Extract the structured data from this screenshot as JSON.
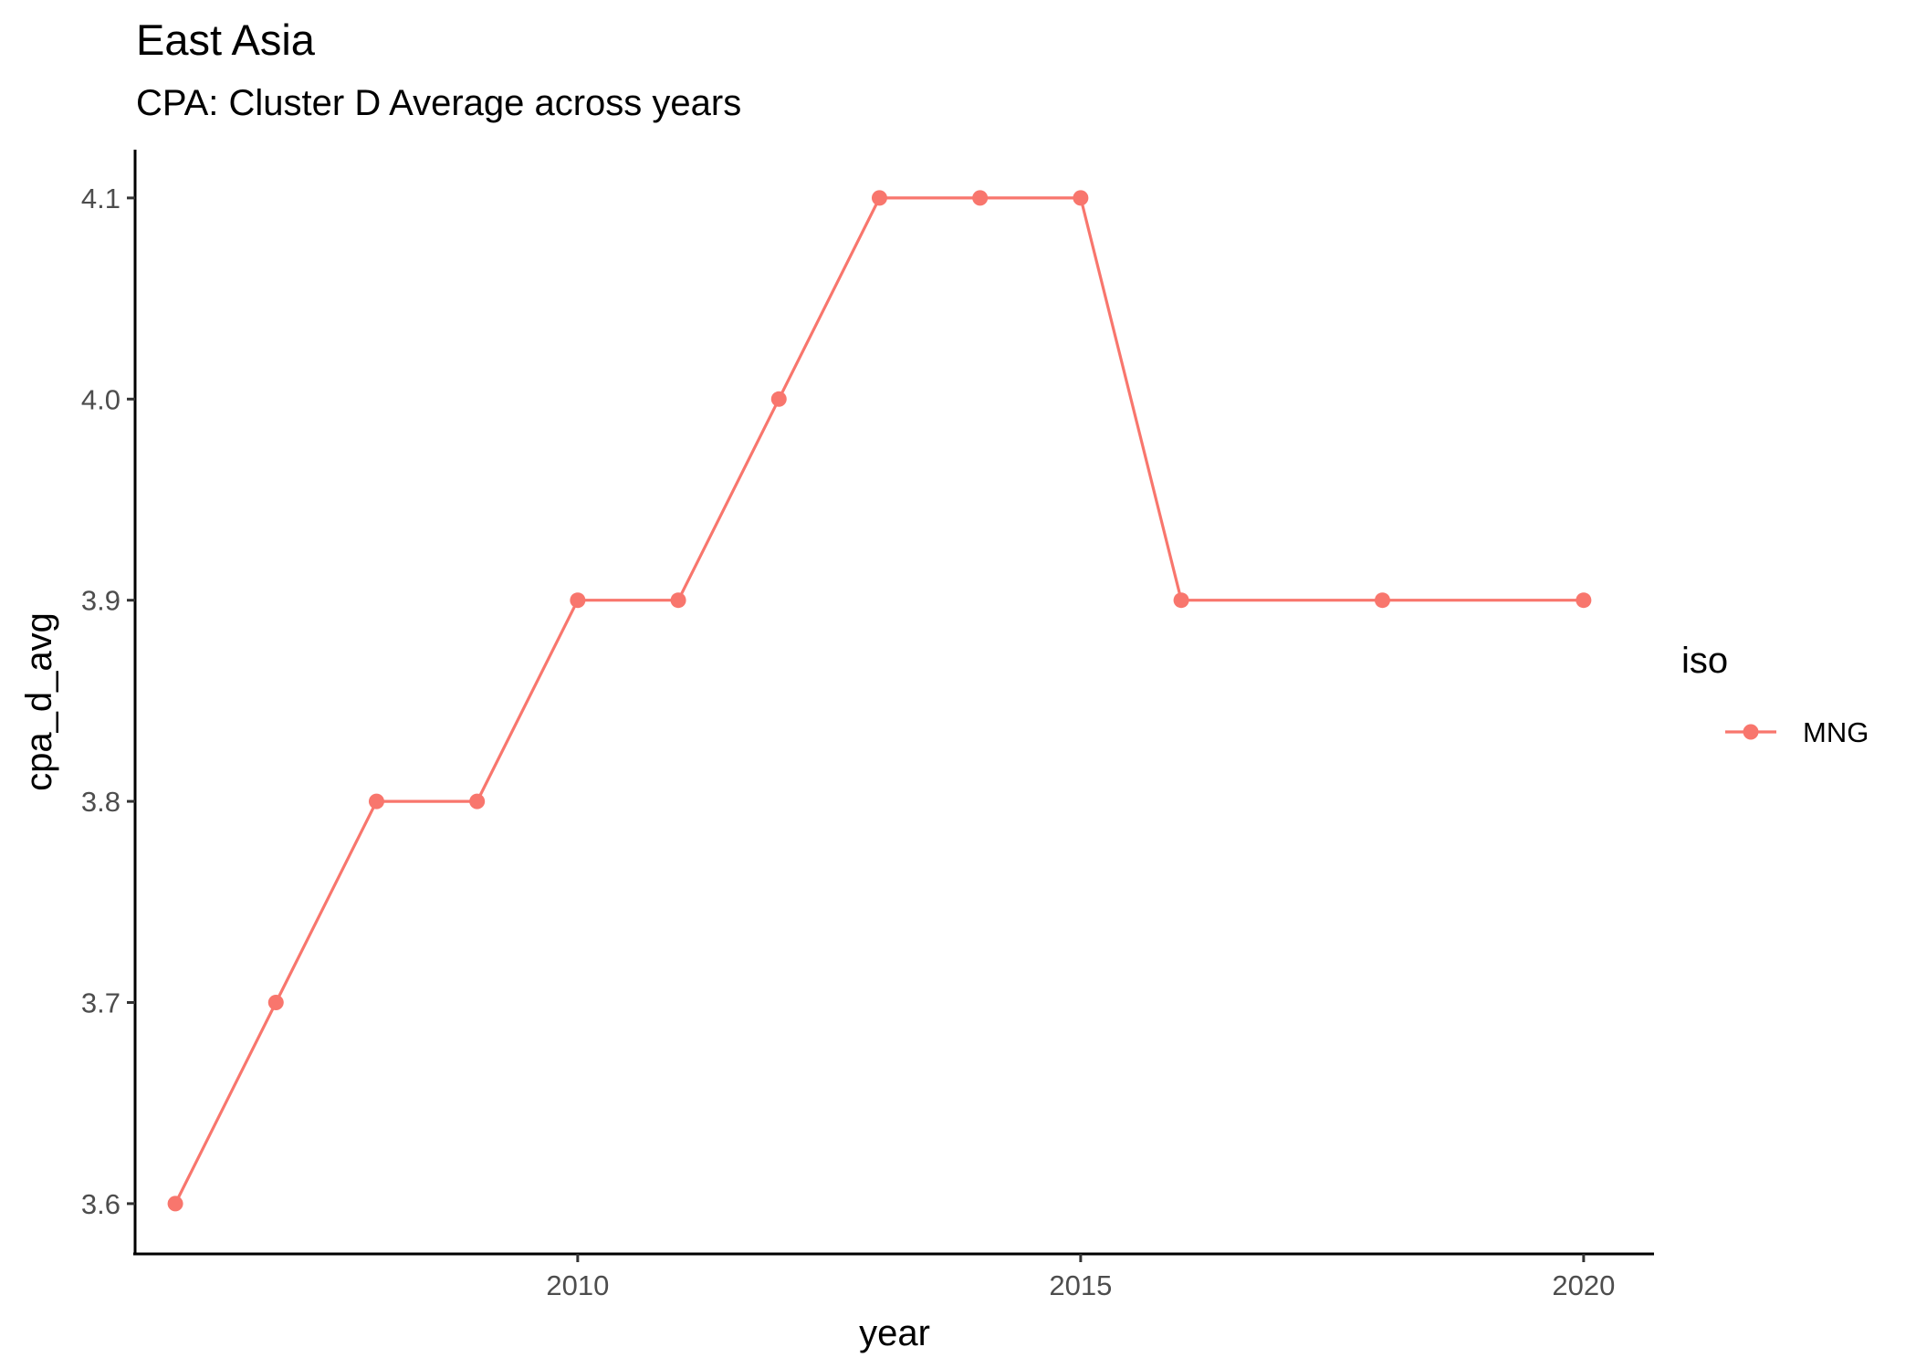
{
  "chart_data": {
    "type": "line",
    "title": "East Asia",
    "subtitle": "CPA: Cluster D Average across years",
    "xlabel": "year",
    "ylabel": "cpa_d_avg",
    "xlim": [
      2005.6,
      2020.7
    ],
    "ylim": [
      3.575,
      4.124
    ],
    "x_ticks": [
      2010,
      2015,
      2020
    ],
    "y_ticks": [
      3.6,
      3.7,
      3.8,
      3.9,
      4.0,
      4.1
    ],
    "y_tick_labels": [
      "3.6",
      "3.7",
      "3.8",
      "3.9",
      "4.0",
      "4.1"
    ],
    "grid": false,
    "legend": {
      "title": "iso",
      "position": "right"
    },
    "series": [
      {
        "name": "MNG",
        "color": "#F8766D",
        "x": [
          2006,
          2007,
          2008,
          2009,
          2010,
          2011,
          2012,
          2013,
          2014,
          2015,
          2016,
          2018,
          2020
        ],
        "y": [
          3.6,
          3.7,
          3.8,
          3.8,
          3.9,
          3.9,
          4.0,
          4.1,
          4.1,
          4.1,
          3.9,
          3.9,
          3.9
        ]
      }
    ]
  }
}
